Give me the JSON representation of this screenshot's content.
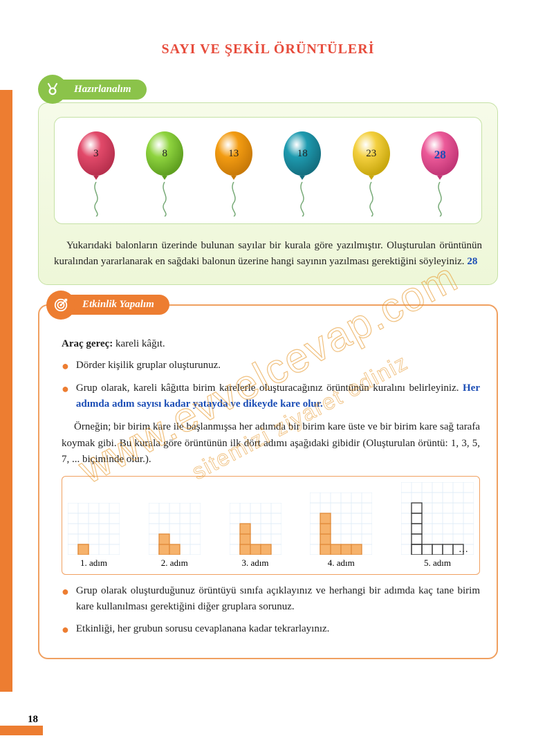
{
  "title": "SAYI VE ŞEKİL ÖRÜNTÜLERİ",
  "page_number": "18",
  "watermark_main": "www.evvelcevap.com",
  "watermark_sub": "sitemizi ziyaret ediniz",
  "section1": {
    "header": "Hazırlanalım",
    "balloons": [
      {
        "value": "3",
        "fill": "#e24a6a",
        "shade": "#b8304e"
      },
      {
        "value": "8",
        "fill": "#8fd43f",
        "shade": "#5fa020"
      },
      {
        "value": "13",
        "fill": "#f39c12",
        "shade": "#c97a08"
      },
      {
        "value": "18",
        "fill": "#1e9bb0",
        "shade": "#146f80"
      },
      {
        "value": "23",
        "fill": "#f4d03f",
        "shade": "#c9a80e"
      },
      {
        "value": "28",
        "fill": "#ec5a99",
        "shade": "#c23676",
        "is_answer": true
      }
    ],
    "paragraph_pre": "Yukarıdaki balonların üzerinde bulunan sayılar bir kurala göre yazılmıştır. Oluşturulan örüntünün kuralından yararlanarak en sağdaki balonun üzerine han­gi sayının yazılması gerektiğini söyleyiniz.",
    "paragraph_answer": "28"
  },
  "section2": {
    "header": "Etkinlik Yapalım",
    "tools_label": "Araç gereç:",
    "tools_value": " kareli kâğıt.",
    "bullets_top": [
      "Dörder kişilik gruplar oluşturunuz.",
      "Grup olarak, kareli kâğıtta birim karelerle oluşturacağınız örüntünün kura­lını belirleyiniz."
    ],
    "handwritten": " Her adımda adım sayısı kadar yatayda ve dikeyde kare olur.",
    "example_text": "Örneğin; bir birim kare ile başlanmışsa her adımda bir birim kare üste ve bir birim kare sağ tarafa koymak gibi. Bu kurala göre örüntünün ilk dört adımı aşağı­daki gibidir (Oluşturulan örüntü: 1, 3, 5, 7, ... biçiminde olur.).",
    "steps": [
      {
        "label": "1. adım",
        "n": 1,
        "filled": true
      },
      {
        "label": "2. adım",
        "n": 2,
        "filled": true
      },
      {
        "label": "3. adım",
        "n": 3,
        "filled": true
      },
      {
        "label": "4. adım",
        "n": 4,
        "filled": true
      },
      {
        "label": "5. adım",
        "n": 5,
        "filled": false,
        "dots": "..."
      }
    ],
    "bullets_bottom": [
      "Grup olarak oluşturduğunuz örüntüyü sınıfa açıklayınız ve herhangi bir adımda kaç tane birim kare kullanılması gerektiğini diğer gruplara sorunuz.",
      "Etkinliği, her grubun sorusu cevaplanana kadar tekrarlayınız."
    ],
    "pattern_style": {
      "cell": 15,
      "fill": "#f6b26b",
      "stroke": "#e08b3a",
      "grid": "#d9e8f5"
    }
  }
}
